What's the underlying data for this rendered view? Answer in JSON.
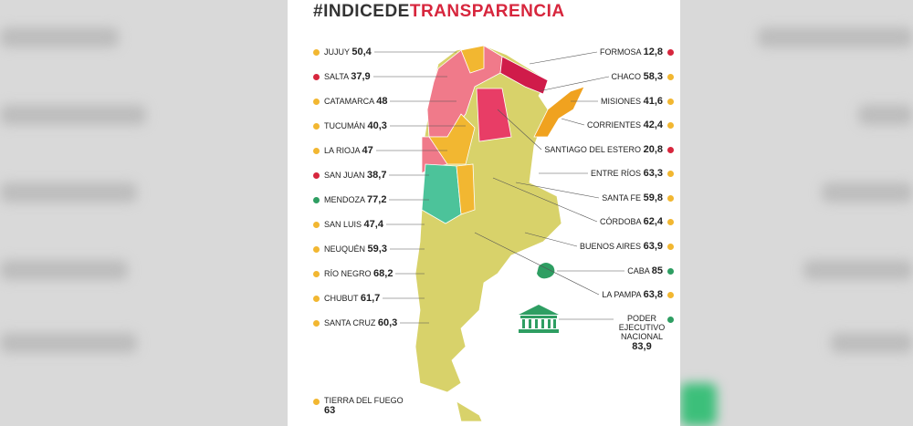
{
  "header": {
    "title_a": "#INDICEDE",
    "title_b": "TRANSPARENCIA"
  },
  "left": [
    {
      "name": "JUJUY",
      "score": "50,4",
      "color": "#f2b731"
    },
    {
      "name": "SALTA",
      "score": "37,9",
      "color": "#d7263d"
    },
    {
      "name": "CATAMARCA",
      "score": "48",
      "color": "#f2b731"
    },
    {
      "name": "TUCUMÁN",
      "score": "40,3",
      "color": "#f2b731"
    },
    {
      "name": "LA RIOJA",
      "score": "47",
      "color": "#f2b731"
    },
    {
      "name": "SAN JUAN",
      "score": "38,7",
      "color": "#d7263d"
    },
    {
      "name": "MENDOZA",
      "score": "77,2",
      "color": "#2e9e62"
    },
    {
      "name": "SAN LUIS",
      "score": "47,4",
      "color": "#f2b731"
    },
    {
      "name": "NEUQUÉN",
      "score": "59,3",
      "color": "#f2b731"
    },
    {
      "name": "RÍO NEGRO",
      "score": "68,2",
      "color": "#f2b731"
    },
    {
      "name": "CHUBUT",
      "score": "61,7",
      "color": "#f2b731"
    },
    {
      "name": "SANTA CRUZ",
      "score": "60,3",
      "color": "#f2b731"
    },
    {
      "name": "TIERRA DEL FUEGO",
      "score": "63",
      "color": "#f2b731"
    }
  ],
  "right": [
    {
      "name": "FORMOSA",
      "score": "12,8",
      "color": "#d7263d"
    },
    {
      "name": "CHACO",
      "score": "58,3",
      "color": "#f2b731"
    },
    {
      "name": "MISIONES",
      "score": "41,6",
      "color": "#f2b731"
    },
    {
      "name": "CORRIENTES",
      "score": "42,4",
      "color": "#f2b731"
    },
    {
      "name": "SANTIAGO DEL ESTERO",
      "score": "20,8",
      "color": "#d7263d"
    },
    {
      "name": "ENTRE RÍOS",
      "score": "63,3",
      "color": "#f2b731"
    },
    {
      "name": "SANTA FE",
      "score": "59,8",
      "color": "#f2b731"
    },
    {
      "name": "CÓRDOBA",
      "score": "62,4",
      "color": "#f2b731"
    },
    {
      "name": "BUENOS AIRES",
      "score": "63,9",
      "color": "#f2b731"
    },
    {
      "name": "CABA",
      "score": "85",
      "color": "#2e9e62"
    },
    {
      "name": "LA PAMPA",
      "score": "63,8",
      "color": "#f2b731"
    },
    {
      "name": "PODER EJECUTIVO NACIONAL",
      "score": "83,9",
      "color": "#2e9e62"
    }
  ]
}
